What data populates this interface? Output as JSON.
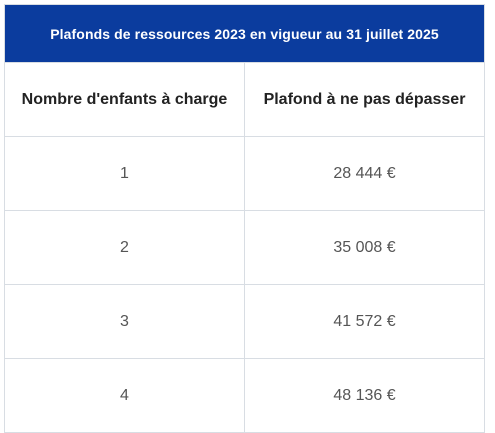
{
  "table": {
    "title": "Plafonds de ressources 2023 en vigueur au 31 juillet 2025",
    "title_bg": "#0b3c9e",
    "columns": [
      "Nombre d'enfants à charge",
      "Plafond à ne pas dépasser"
    ],
    "rows": [
      [
        "1",
        "28 444 €"
      ],
      [
        "2",
        "35 008 €"
      ],
      [
        "3",
        "41 572 €"
      ],
      [
        "4",
        "48 136 €"
      ]
    ]
  }
}
